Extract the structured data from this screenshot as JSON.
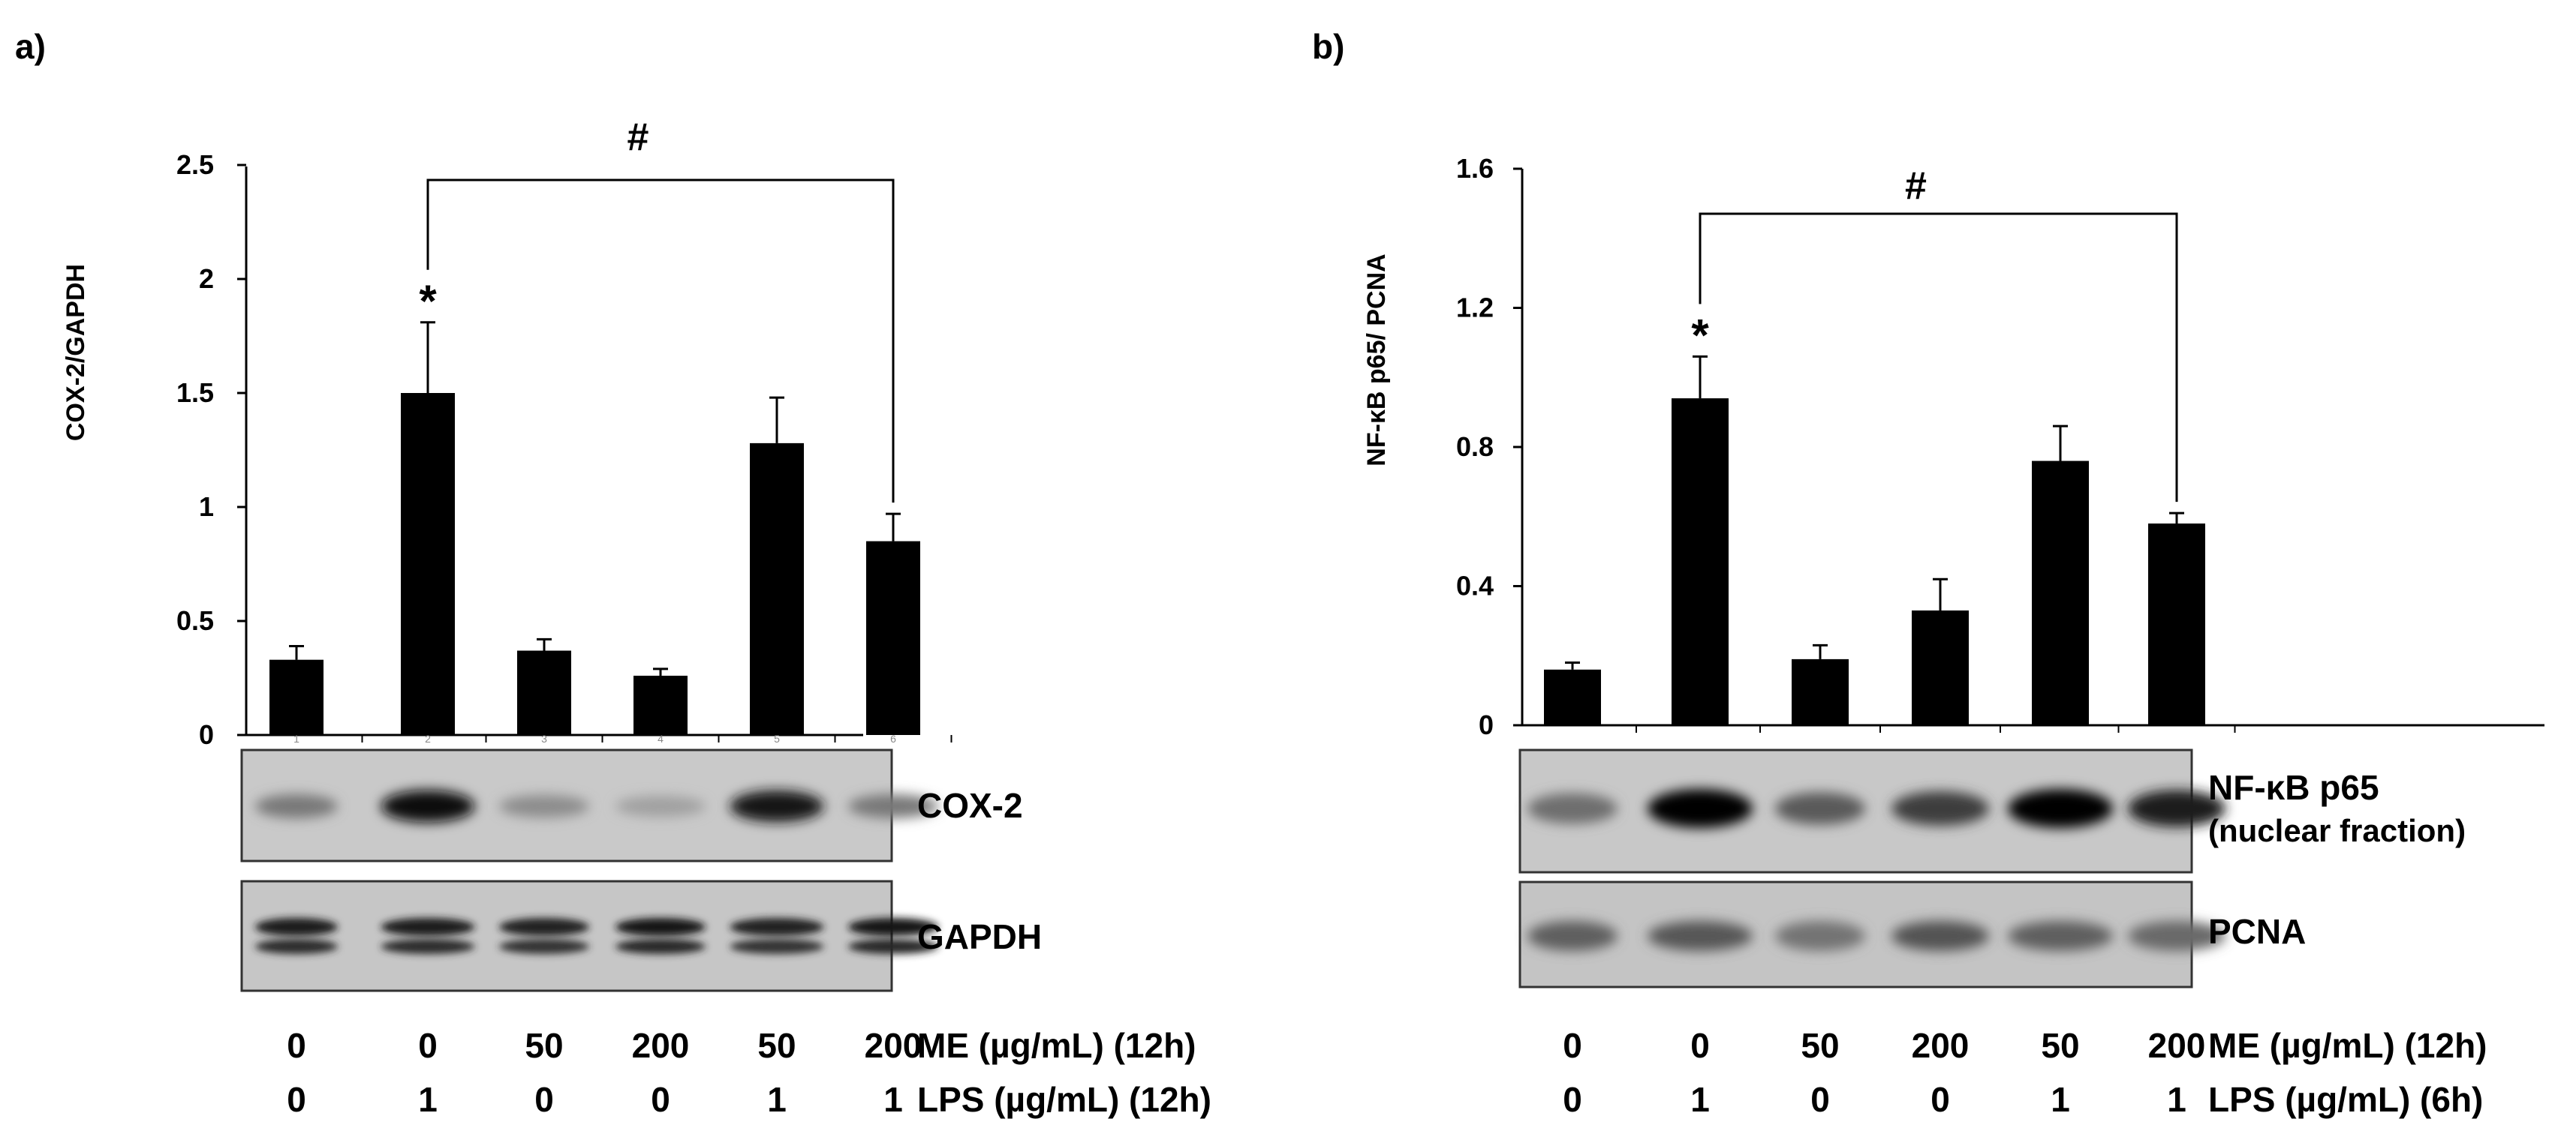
{
  "panels": [
    {
      "label": "a)",
      "y_axis_label": "COX-2/GAPDH",
      "significance": {
        "star": "*",
        "hash": "#"
      },
      "blots": [
        {
          "name": "COX-2",
          "sublabel": ""
        },
        {
          "name": "GAPDH",
          "sublabel": ""
        }
      ],
      "conditions": [
        {
          "label": "ME (µg/mL) (12h)",
          "values": [
            "0",
            "0",
            "50",
            "200",
            "50",
            "200"
          ]
        },
        {
          "label": "LPS (µg/mL) (12h)",
          "values": [
            "0",
            "1",
            "0",
            "0",
            "1",
            "1"
          ]
        }
      ],
      "lane_numbers": [
        "1",
        "2",
        "3",
        "4",
        "5",
        "6"
      ]
    },
    {
      "label": "b)",
      "y_axis_label": "NF-κB p65/ PCNA",
      "significance": {
        "star": "*",
        "hash": "#"
      },
      "blots": [
        {
          "name": "NF-κB p65",
          "sublabel": "(nuclear fraction)"
        },
        {
          "name": "PCNA",
          "sublabel": ""
        }
      ],
      "conditions": [
        {
          "label": "ME (µg/mL) (12h)",
          "values": [
            "0",
            "0",
            "50",
            "200",
            "50",
            "200"
          ]
        },
        {
          "label": "LPS (µg/mL) (6h)",
          "values": [
            "0",
            "1",
            "0",
            "0",
            "1",
            "1"
          ]
        }
      ]
    }
  ],
  "chart_data": [
    {
      "type": "bar",
      "title": "",
      "ylabel": "COX-2/GAPDH",
      "categories": [
        "1",
        "2",
        "3",
        "4",
        "5",
        "6"
      ],
      "values": [
        0.33,
        1.5,
        0.37,
        0.26,
        1.28,
        0.85
      ],
      "errors": [
        0.06,
        0.31,
        0.05,
        0.03,
        0.2,
        0.12
      ],
      "ylim": [
        0,
        2.5
      ],
      "yticks": [
        "0",
        "0.5",
        "1",
        "1.5",
        "2",
        "2.5"
      ],
      "ytick_values": [
        0,
        0.5,
        1,
        1.5,
        2,
        2.5
      ],
      "star_bar": 1,
      "bracket": [
        1,
        5
      ],
      "band_intensity": {
        "COX-2": [
          0.4,
          0.95,
          0.3,
          0.2,
          0.9,
          0.4
        ],
        "GAPDH": [
          0.9,
          0.9,
          0.88,
          0.92,
          0.88,
          0.93
        ]
      }
    },
    {
      "type": "bar",
      "title": "",
      "ylabel": "NF-κB p65/ PCNA",
      "categories": [
        "1",
        "2",
        "3",
        "4",
        "5",
        "6"
      ],
      "values": [
        0.16,
        0.94,
        0.19,
        0.33,
        0.76,
        0.58
      ],
      "errors": [
        0.02,
        0.12,
        0.04,
        0.09,
        0.1,
        0.03
      ],
      "ylim": [
        0,
        1.6
      ],
      "yticks": [
        "0",
        "0.4",
        "0.8",
        "1.2",
        "1.6"
      ],
      "ytick_values": [
        0,
        0.4,
        0.8,
        1.2,
        1.6
      ],
      "star_bar": 1,
      "bracket": [
        1,
        5
      ],
      "band_intensity": {
        "NF-κB p65": [
          0.45,
          1.0,
          0.55,
          0.7,
          1.0,
          0.85
        ],
        "PCNA": [
          0.55,
          0.6,
          0.45,
          0.62,
          0.55,
          0.5
        ]
      }
    }
  ]
}
